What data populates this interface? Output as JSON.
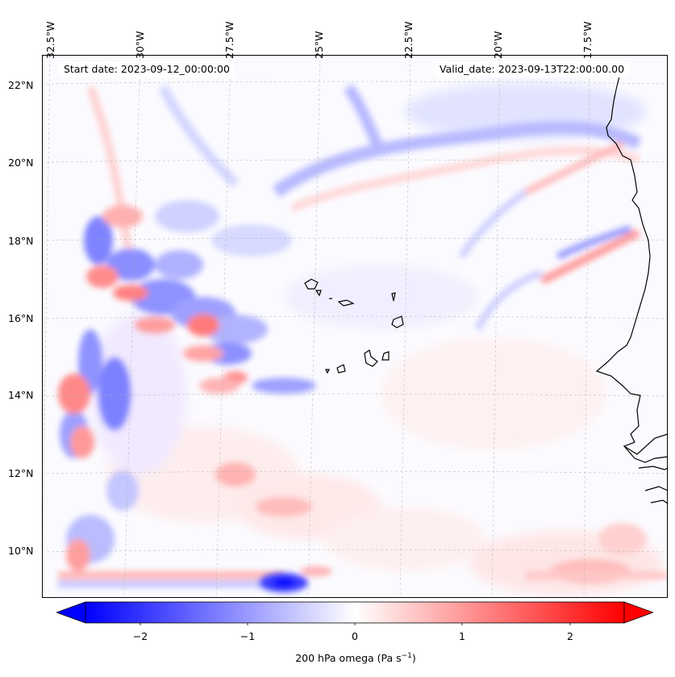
{
  "map": {
    "start_date_text": "Start date: 2023-09-12_00:00:00",
    "valid_date_text": "Valid_date: 2023-09-13T22:00:00.00",
    "longitude_labels": [
      "32.5°W",
      "30°W",
      "27.5°W",
      "25°W",
      "22.5°W",
      "20°W",
      "17.5°W"
    ],
    "latitude_labels": [
      "22°N",
      "20°N",
      "18°N",
      "16°N",
      "14°N",
      "12°N",
      "10°N"
    ],
    "colors": {
      "negative": "#0000ff",
      "neutral": "#ffffff",
      "positive": "#ff0000",
      "coastline": "#000000"
    }
  },
  "colorbar": {
    "ticks": [
      "−2",
      "−1",
      "0",
      "1",
      "2"
    ],
    "label": "200 hPa omega (Pa s",
    "label_superscript": "−1",
    "label_close": ")",
    "range": [
      -2.6,
      2.6
    ]
  }
}
